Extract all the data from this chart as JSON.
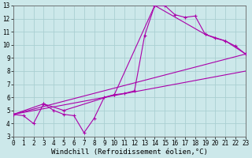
{
  "bg_color": "#cce8ea",
  "grid_color": "#aacfd2",
  "line_color": "#aa00aa",
  "xlim": [
    0,
    23
  ],
  "ylim": [
    3,
    13
  ],
  "xticks": [
    0,
    1,
    2,
    3,
    4,
    5,
    6,
    7,
    8,
    9,
    10,
    11,
    12,
    13,
    14,
    15,
    16,
    17,
    18,
    19,
    20,
    21,
    22,
    23
  ],
  "yticks": [
    3,
    4,
    5,
    6,
    7,
    8,
    9,
    10,
    11,
    12,
    13
  ],
  "xlabel": "Windchill (Refroidissement éolien,°C)",
  "tick_fontsize": 5.5,
  "xlabel_fontsize": 6.5,
  "line1_x": [
    0,
    1,
    2,
    3,
    4,
    5,
    6,
    7,
    8,
    9,
    10,
    11,
    12,
    13,
    14,
    15,
    16,
    17,
    18,
    19,
    20,
    21,
    22,
    23
  ],
  "line1_y": [
    4.7,
    4.6,
    4.0,
    5.5,
    5.0,
    4.7,
    4.6,
    3.3,
    4.4,
    6.0,
    6.2,
    6.3,
    6.5,
    10.7,
    13.0,
    13.0,
    12.3,
    12.1,
    12.2,
    10.8,
    10.5,
    10.3,
    9.9,
    9.3
  ],
  "line2_x": [
    0,
    3,
    5,
    10,
    14,
    19,
    21,
    23
  ],
  "line2_y": [
    4.7,
    5.5,
    5.0,
    6.2,
    13.0,
    10.8,
    10.3,
    9.3
  ],
  "trend1_x": [
    0,
    23
  ],
  "trend1_y": [
    4.7,
    9.3
  ],
  "trend2_x": [
    0,
    23
  ],
  "trend2_y": [
    4.7,
    8.0
  ]
}
